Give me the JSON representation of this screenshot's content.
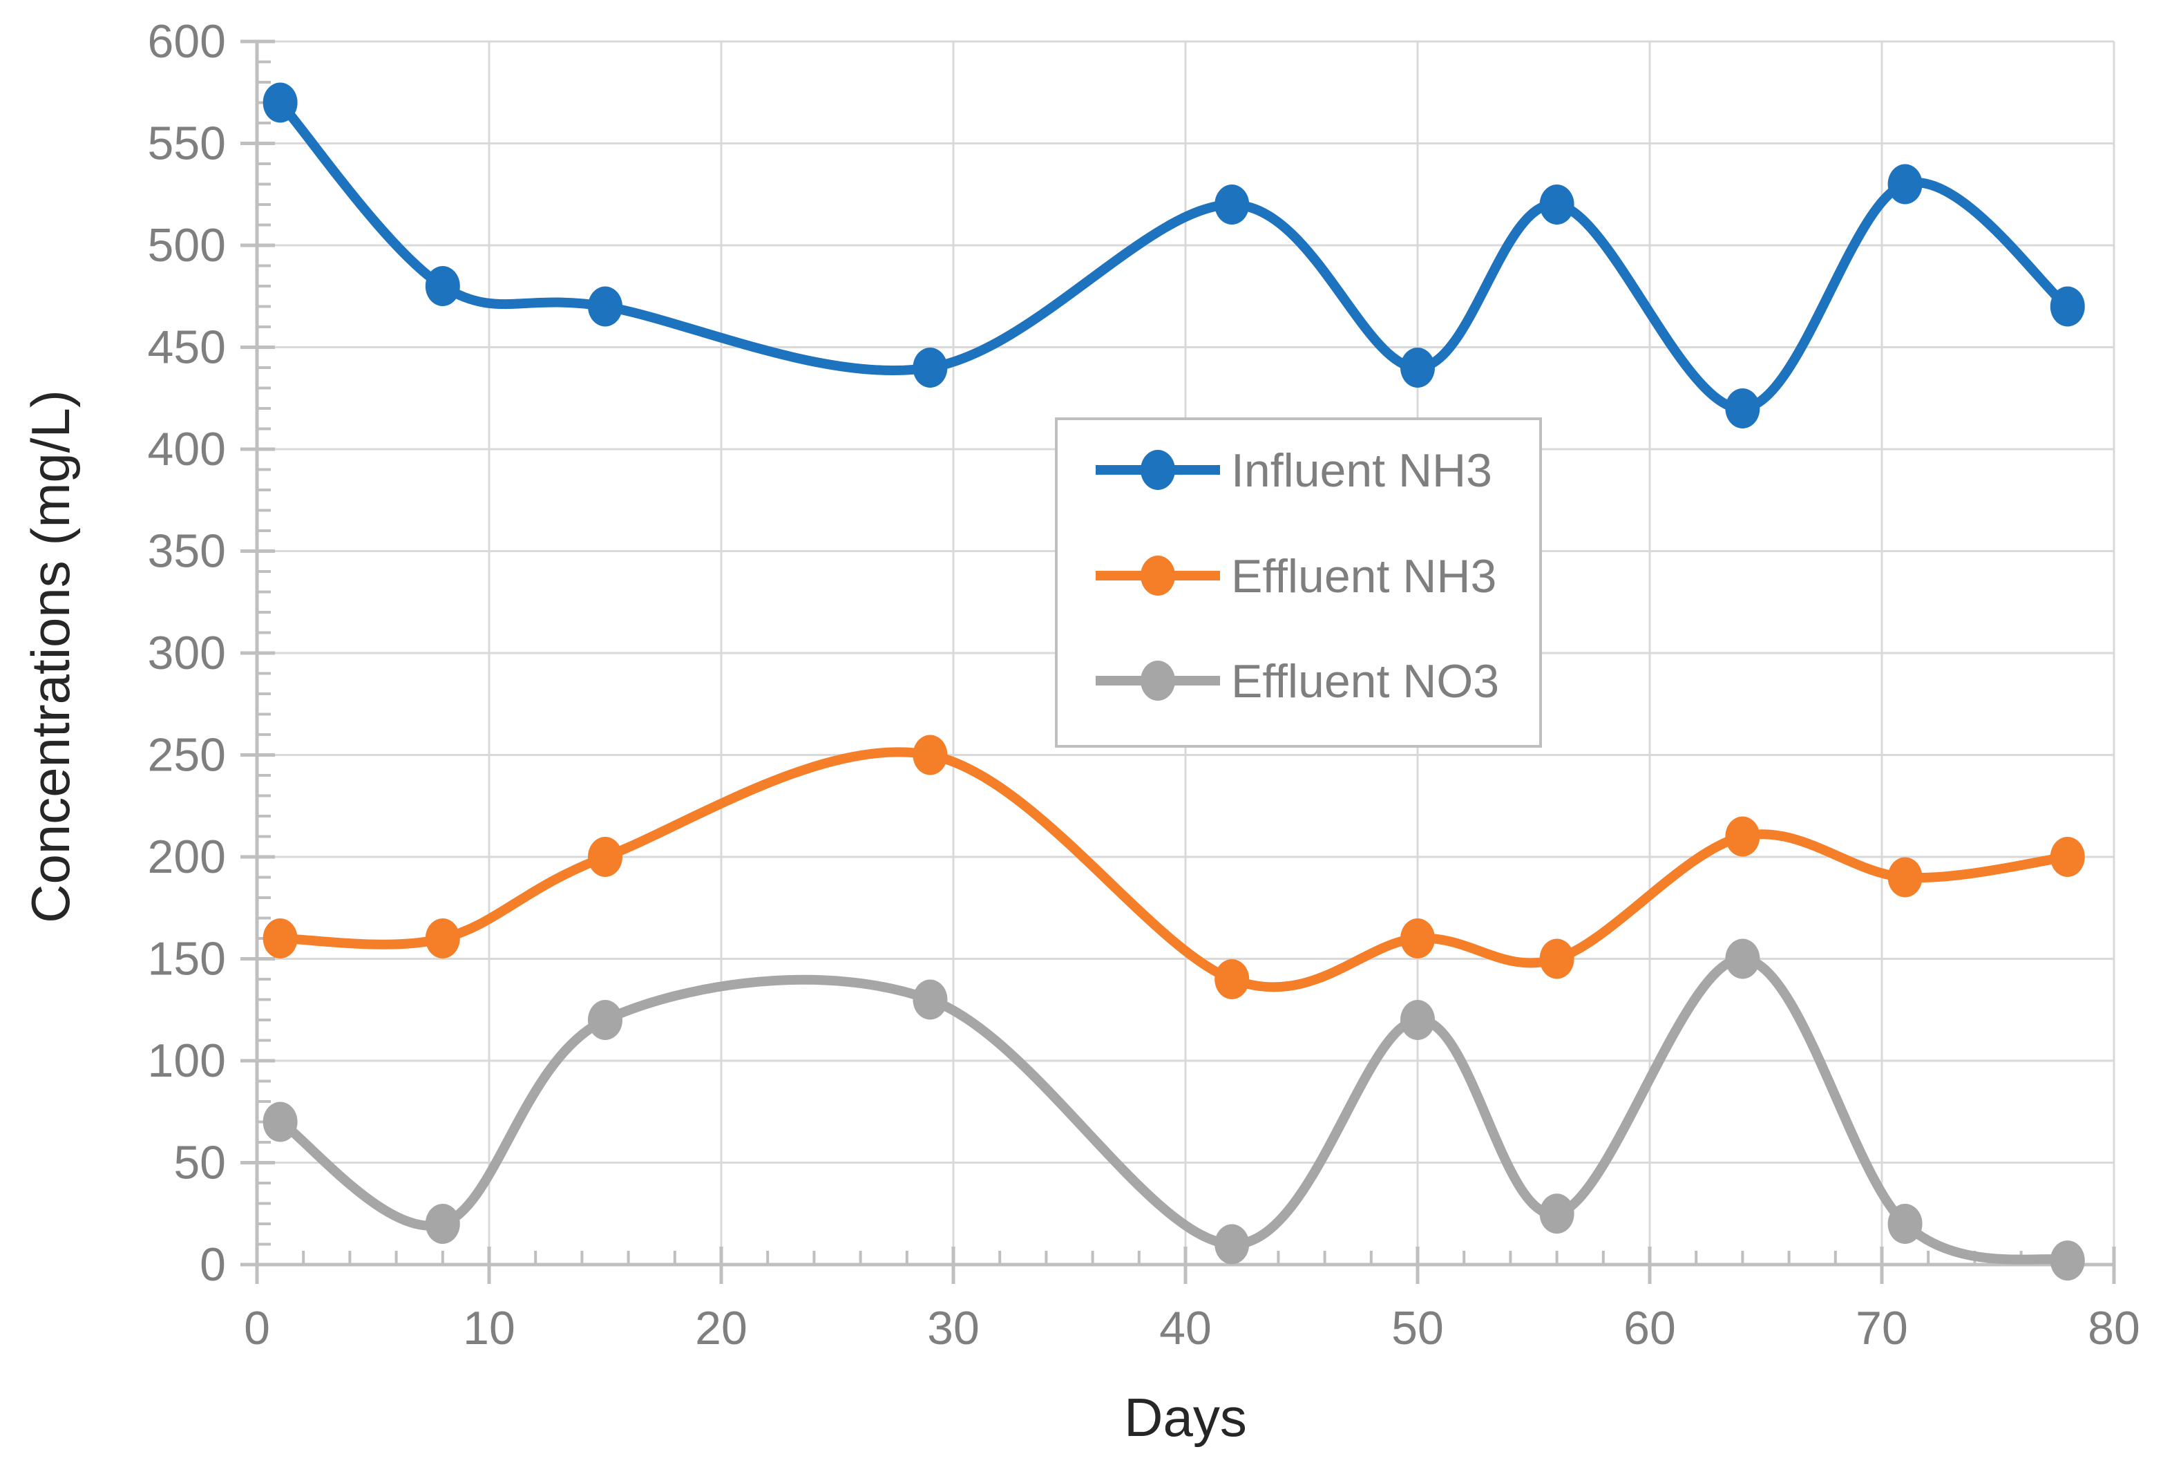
{
  "chart_data": {
    "type": "line",
    "title": "",
    "xlabel": "Days",
    "ylabel": "Concentrations (mg/L)",
    "x": [
      1,
      8,
      15,
      29,
      42,
      50,
      56,
      64,
      71,
      78
    ],
    "series": [
      {
        "name": "Influent NH3",
        "color": "#1E73BE",
        "values": [
          570,
          480,
          470,
          440,
          520,
          440,
          520,
          420,
          530,
          470
        ]
      },
      {
        "name": "Effluent NH3",
        "color": "#F57E28",
        "values": [
          160,
          160,
          200,
          250,
          140,
          160,
          150,
          210,
          190,
          200
        ]
      },
      {
        "name": "Effluent NO3",
        "color": "#A6A6A6",
        "values": [
          70,
          20,
          120,
          130,
          10,
          120,
          25,
          150,
          20,
          2
        ]
      }
    ],
    "xlim": [
      0,
      80
    ],
    "ylim": [
      0,
      600
    ],
    "x_major_step": 10,
    "x_minor_step": 2,
    "y_major_step": 50,
    "y_minor_step": 10,
    "grid": true,
    "smooth": true,
    "legend_position": "center",
    "legend_entries": [
      "Influent NH3",
      "Effluent NH3",
      "Effluent NO3"
    ],
    "colors": {
      "grid": "#D9D9D9",
      "axis": "#BFBFBF",
      "tick_text": "#7F7F7F",
      "title_text": "#262626",
      "legend_border": "#BFBFBF",
      "legend_fill": "#FFFFFF",
      "background": "#FFFFFF"
    }
  }
}
